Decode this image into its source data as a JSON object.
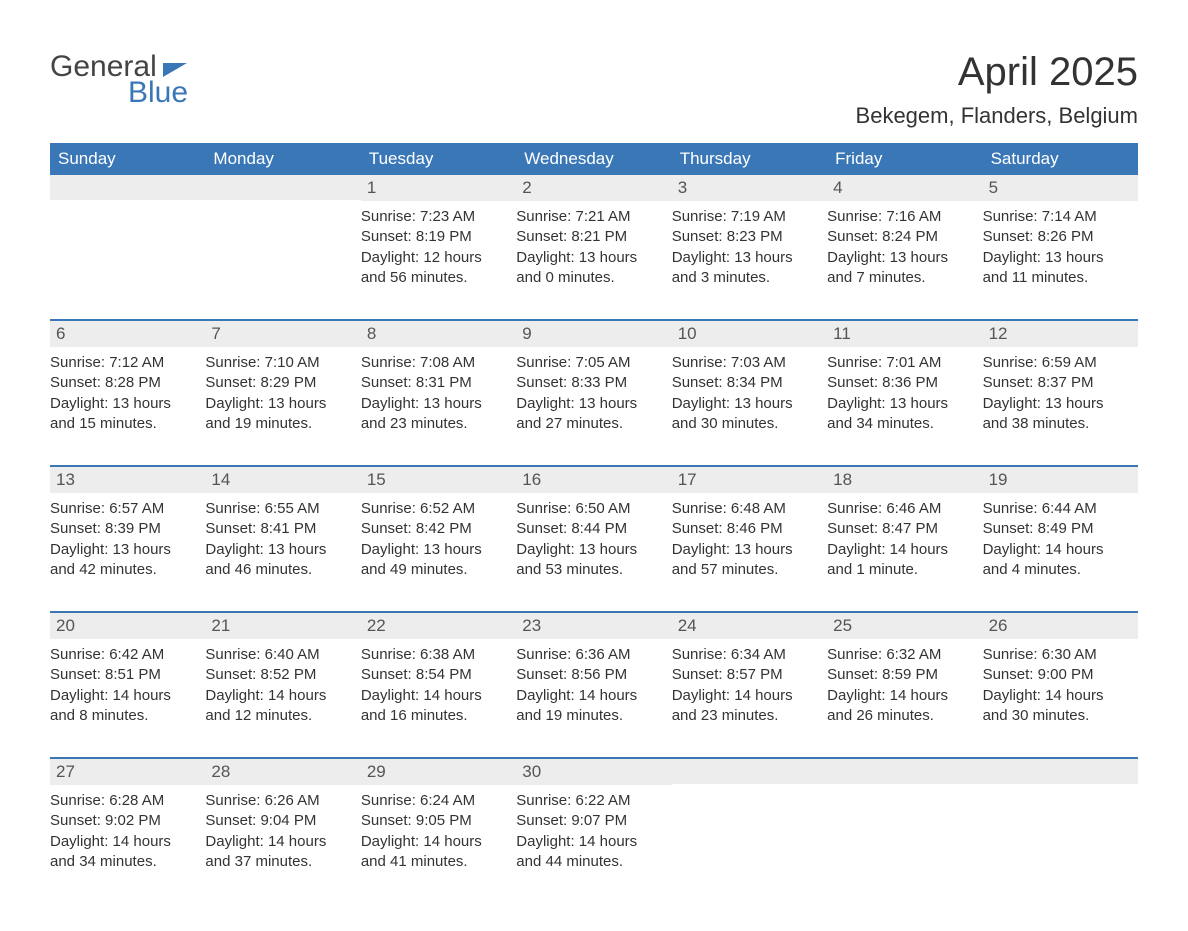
{
  "brand": {
    "word1": "General",
    "word2": "Blue"
  },
  "title": "April 2025",
  "location": "Bekegem, Flanders, Belgium",
  "colors": {
    "header_bg": "#3a77b7",
    "header_text": "#ffffff",
    "daynum_band_bg": "#ededed",
    "daynum_text": "#555555",
    "body_text": "#333333",
    "week_divider": "#3a77b7",
    "page_bg": "#ffffff",
    "logo_gray": "#444444",
    "logo_blue": "#3a77b7"
  },
  "typography": {
    "month_title_fontsize": 40,
    "location_fontsize": 22,
    "weekday_fontsize": 17,
    "daynum_fontsize": 17,
    "body_fontsize": 15
  },
  "layout": {
    "columns": 7,
    "rows": 5,
    "start_day_index": 2
  },
  "weekdays": [
    "Sunday",
    "Monday",
    "Tuesday",
    "Wednesday",
    "Thursday",
    "Friday",
    "Saturday"
  ],
  "days": [
    {
      "n": 1,
      "sunrise": "Sunrise: 7:23 AM",
      "sunset": "Sunset: 8:19 PM",
      "daylight1": "Daylight: 12 hours",
      "daylight2": "and 56 minutes."
    },
    {
      "n": 2,
      "sunrise": "Sunrise: 7:21 AM",
      "sunset": "Sunset: 8:21 PM",
      "daylight1": "Daylight: 13 hours",
      "daylight2": "and 0 minutes."
    },
    {
      "n": 3,
      "sunrise": "Sunrise: 7:19 AM",
      "sunset": "Sunset: 8:23 PM",
      "daylight1": "Daylight: 13 hours",
      "daylight2": "and 3 minutes."
    },
    {
      "n": 4,
      "sunrise": "Sunrise: 7:16 AM",
      "sunset": "Sunset: 8:24 PM",
      "daylight1": "Daylight: 13 hours",
      "daylight2": "and 7 minutes."
    },
    {
      "n": 5,
      "sunrise": "Sunrise: 7:14 AM",
      "sunset": "Sunset: 8:26 PM",
      "daylight1": "Daylight: 13 hours",
      "daylight2": "and 11 minutes."
    },
    {
      "n": 6,
      "sunrise": "Sunrise: 7:12 AM",
      "sunset": "Sunset: 8:28 PM",
      "daylight1": "Daylight: 13 hours",
      "daylight2": "and 15 minutes."
    },
    {
      "n": 7,
      "sunrise": "Sunrise: 7:10 AM",
      "sunset": "Sunset: 8:29 PM",
      "daylight1": "Daylight: 13 hours",
      "daylight2": "and 19 minutes."
    },
    {
      "n": 8,
      "sunrise": "Sunrise: 7:08 AM",
      "sunset": "Sunset: 8:31 PM",
      "daylight1": "Daylight: 13 hours",
      "daylight2": "and 23 minutes."
    },
    {
      "n": 9,
      "sunrise": "Sunrise: 7:05 AM",
      "sunset": "Sunset: 8:33 PM",
      "daylight1": "Daylight: 13 hours",
      "daylight2": "and 27 minutes."
    },
    {
      "n": 10,
      "sunrise": "Sunrise: 7:03 AM",
      "sunset": "Sunset: 8:34 PM",
      "daylight1": "Daylight: 13 hours",
      "daylight2": "and 30 minutes."
    },
    {
      "n": 11,
      "sunrise": "Sunrise: 7:01 AM",
      "sunset": "Sunset: 8:36 PM",
      "daylight1": "Daylight: 13 hours",
      "daylight2": "and 34 minutes."
    },
    {
      "n": 12,
      "sunrise": "Sunrise: 6:59 AM",
      "sunset": "Sunset: 8:37 PM",
      "daylight1": "Daylight: 13 hours",
      "daylight2": "and 38 minutes."
    },
    {
      "n": 13,
      "sunrise": "Sunrise: 6:57 AM",
      "sunset": "Sunset: 8:39 PM",
      "daylight1": "Daylight: 13 hours",
      "daylight2": "and 42 minutes."
    },
    {
      "n": 14,
      "sunrise": "Sunrise: 6:55 AM",
      "sunset": "Sunset: 8:41 PM",
      "daylight1": "Daylight: 13 hours",
      "daylight2": "and 46 minutes."
    },
    {
      "n": 15,
      "sunrise": "Sunrise: 6:52 AM",
      "sunset": "Sunset: 8:42 PM",
      "daylight1": "Daylight: 13 hours",
      "daylight2": "and 49 minutes."
    },
    {
      "n": 16,
      "sunrise": "Sunrise: 6:50 AM",
      "sunset": "Sunset: 8:44 PM",
      "daylight1": "Daylight: 13 hours",
      "daylight2": "and 53 minutes."
    },
    {
      "n": 17,
      "sunrise": "Sunrise: 6:48 AM",
      "sunset": "Sunset: 8:46 PM",
      "daylight1": "Daylight: 13 hours",
      "daylight2": "and 57 minutes."
    },
    {
      "n": 18,
      "sunrise": "Sunrise: 6:46 AM",
      "sunset": "Sunset: 8:47 PM",
      "daylight1": "Daylight: 14 hours",
      "daylight2": "and 1 minute."
    },
    {
      "n": 19,
      "sunrise": "Sunrise: 6:44 AM",
      "sunset": "Sunset: 8:49 PM",
      "daylight1": "Daylight: 14 hours",
      "daylight2": "and 4 minutes."
    },
    {
      "n": 20,
      "sunrise": "Sunrise: 6:42 AM",
      "sunset": "Sunset: 8:51 PM",
      "daylight1": "Daylight: 14 hours",
      "daylight2": "and 8 minutes."
    },
    {
      "n": 21,
      "sunrise": "Sunrise: 6:40 AM",
      "sunset": "Sunset: 8:52 PM",
      "daylight1": "Daylight: 14 hours",
      "daylight2": "and 12 minutes."
    },
    {
      "n": 22,
      "sunrise": "Sunrise: 6:38 AM",
      "sunset": "Sunset: 8:54 PM",
      "daylight1": "Daylight: 14 hours",
      "daylight2": "and 16 minutes."
    },
    {
      "n": 23,
      "sunrise": "Sunrise: 6:36 AM",
      "sunset": "Sunset: 8:56 PM",
      "daylight1": "Daylight: 14 hours",
      "daylight2": "and 19 minutes."
    },
    {
      "n": 24,
      "sunrise": "Sunrise: 6:34 AM",
      "sunset": "Sunset: 8:57 PM",
      "daylight1": "Daylight: 14 hours",
      "daylight2": "and 23 minutes."
    },
    {
      "n": 25,
      "sunrise": "Sunrise: 6:32 AM",
      "sunset": "Sunset: 8:59 PM",
      "daylight1": "Daylight: 14 hours",
      "daylight2": "and 26 minutes."
    },
    {
      "n": 26,
      "sunrise": "Sunrise: 6:30 AM",
      "sunset": "Sunset: 9:00 PM",
      "daylight1": "Daylight: 14 hours",
      "daylight2": "and 30 minutes."
    },
    {
      "n": 27,
      "sunrise": "Sunrise: 6:28 AM",
      "sunset": "Sunset: 9:02 PM",
      "daylight1": "Daylight: 14 hours",
      "daylight2": "and 34 minutes."
    },
    {
      "n": 28,
      "sunrise": "Sunrise: 6:26 AM",
      "sunset": "Sunset: 9:04 PM",
      "daylight1": "Daylight: 14 hours",
      "daylight2": "and 37 minutes."
    },
    {
      "n": 29,
      "sunrise": "Sunrise: 6:24 AM",
      "sunset": "Sunset: 9:05 PM",
      "daylight1": "Daylight: 14 hours",
      "daylight2": "and 41 minutes."
    },
    {
      "n": 30,
      "sunrise": "Sunrise: 6:22 AM",
      "sunset": "Sunset: 9:07 PM",
      "daylight1": "Daylight: 14 hours",
      "daylight2": "and 44 minutes."
    }
  ]
}
